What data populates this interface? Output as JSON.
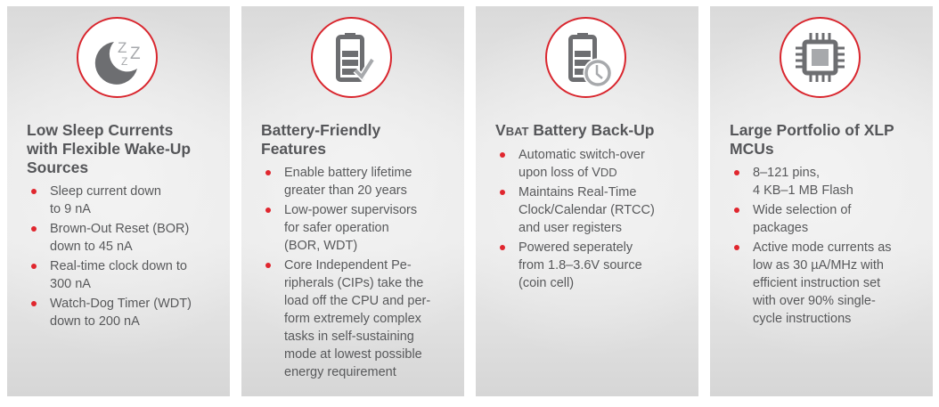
{
  "accent_color": "#d9262e",
  "panels": [
    {
      "icon": "moon-sleep-icon",
      "title_lines": [
        [
          {
            "t": "Low Sleep Currents"
          }
        ],
        [
          {
            "t": "with Flexible Wake-Up"
          }
        ],
        [
          {
            "t": "Sources"
          }
        ]
      ],
      "bullets": [
        [
          [
            {
              "t": "Sleep current down"
            }
          ],
          [
            {
              "t": "to 9 nA"
            }
          ]
        ],
        [
          [
            {
              "t": "Brown-Out Reset (BOR)"
            }
          ],
          [
            {
              "t": "down to 45 nA"
            }
          ]
        ],
        [
          [
            {
              "t": "Real-time clock down to"
            }
          ],
          [
            {
              "t": "300 nA"
            }
          ]
        ],
        [
          [
            {
              "t": "Watch-Dog Timer (WDT)"
            }
          ],
          [
            {
              "t": "down to 200 nA"
            }
          ]
        ]
      ]
    },
    {
      "icon": "battery-check-icon",
      "title_lines": [
        [
          {
            "t": "Battery-Friendly"
          }
        ],
        [
          {
            "t": "Features"
          }
        ]
      ],
      "bullets": [
        [
          [
            {
              "t": "Enable battery lifetime"
            }
          ],
          [
            {
              "t": "greater than 20 years"
            }
          ]
        ],
        [
          [
            {
              "t": "Low-power supervisors"
            }
          ],
          [
            {
              "t": "for safer operation"
            }
          ],
          [
            {
              "t": "(BOR, WDT)"
            }
          ]
        ],
        [
          [
            {
              "t": "Core Independent Pe-"
            }
          ],
          [
            {
              "t": "ripherals (CIPs) take the"
            }
          ],
          [
            {
              "t": "load off the CPU and per-"
            }
          ],
          [
            {
              "t": "form extremely complex"
            }
          ],
          [
            {
              "t": "tasks in self-sustaining"
            }
          ],
          [
            {
              "t": "mode at lowest possible"
            }
          ],
          [
            {
              "t": "energy requirement"
            }
          ]
        ]
      ]
    },
    {
      "icon": "battery-clock-icon",
      "title_lines": [
        [
          {
            "t": "V"
          },
          {
            "t": "BAT",
            "sc": true
          },
          {
            "t": " Battery Back-Up"
          }
        ]
      ],
      "bullets": [
        [
          [
            {
              "t": "Automatic switch-over"
            }
          ],
          [
            {
              "t": "upon loss of V"
            },
            {
              "t": "DD",
              "sc": true
            }
          ]
        ],
        [
          [
            {
              "t": "Maintains Real-Time"
            }
          ],
          [
            {
              "t": "Clock/Calendar (RTCC)"
            }
          ],
          [
            {
              "t": "and user registers"
            }
          ]
        ],
        [
          [
            {
              "t": "Powered seperately"
            }
          ],
          [
            {
              "t": "from 1.8–3.6V source"
            }
          ],
          [
            {
              "t": "(coin cell)"
            }
          ]
        ]
      ]
    },
    {
      "icon": "microchip-icon",
      "title_lines": [
        [
          {
            "t": "Large Portfolio of XLP"
          }
        ],
        [
          {
            "t": "MCUs"
          }
        ]
      ],
      "bullets": [
        [
          [
            {
              "t": "8–121 pins,"
            }
          ],
          [
            {
              "t": "4 KB–1 MB Flash"
            }
          ]
        ],
        [
          [
            {
              "t": "Wide selection of"
            }
          ],
          [
            {
              "t": "packages"
            }
          ]
        ],
        [
          [
            {
              "t": "Active mode currents as"
            }
          ],
          [
            {
              "t": "low as 30 µA/MHz with"
            }
          ],
          [
            {
              "t": "efficient instruction set"
            }
          ],
          [
            {
              "t": "with over 90% single-"
            }
          ],
          [
            {
              "t": "cycle instructions"
            }
          ]
        ]
      ]
    }
  ]
}
